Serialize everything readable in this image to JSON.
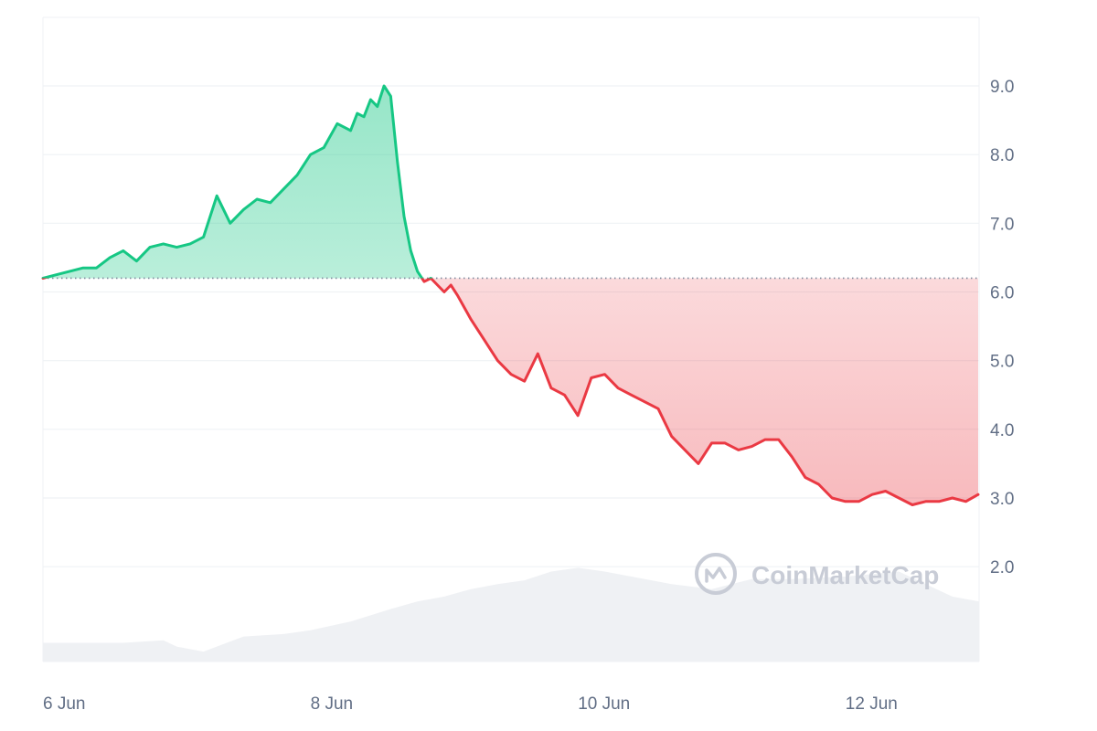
{
  "chart_data": {
    "type": "line",
    "title": "",
    "xlabel": "",
    "ylabel": "",
    "x_ticks": [
      "6 Jun",
      "8 Jun",
      "10 Jun",
      "12 Jun"
    ],
    "y_ticks": [
      "2.0",
      "3.0",
      "4.0",
      "5.0",
      "6.0",
      "7.0",
      "8.0",
      "9.0"
    ],
    "ylim": [
      1.0,
      10.0
    ],
    "x_range_days": [
      0,
      7.05
    ],
    "baseline": 6.2,
    "grid": true,
    "y_axis_position": "right",
    "series": [
      {
        "x": [
          0.0,
          0.1,
          0.2,
          0.3,
          0.4,
          0.5,
          0.6,
          0.7,
          0.8,
          0.9,
          1.0,
          1.1,
          1.2,
          1.3,
          1.4,
          1.5,
          1.6,
          1.7,
          1.8,
          1.9,
          2.0,
          2.1,
          2.2,
          2.3,
          2.35,
          2.4,
          2.45,
          2.5,
          2.55,
          2.6,
          2.65,
          2.7,
          2.75,
          2.8,
          2.85,
          2.9,
          2.95,
          3.0,
          3.05,
          3.1,
          3.2,
          3.3,
          3.4,
          3.5,
          3.6,
          3.7,
          3.8,
          3.9,
          4.0,
          4.1,
          4.2,
          4.3,
          4.4,
          4.5,
          4.6,
          4.7,
          4.8,
          4.9,
          5.0,
          5.1,
          5.2,
          5.3,
          5.4,
          5.5,
          5.6,
          5.7,
          5.8,
          5.9,
          6.0,
          6.1,
          6.2,
          6.3,
          6.4,
          6.5,
          6.6,
          6.7,
          6.8,
          6.9,
          7.0,
          7.05
        ],
        "y": [
          6.2,
          6.25,
          6.3,
          6.35,
          6.35,
          6.5,
          6.6,
          6.45,
          6.65,
          6.7,
          6.65,
          6.7,
          6.8,
          7.4,
          7.0,
          7.2,
          7.35,
          7.3,
          7.5,
          7.7,
          8.0,
          8.1,
          8.45,
          8.35,
          8.6,
          8.55,
          8.8,
          8.7,
          9.0,
          8.85,
          7.9,
          7.1,
          6.6,
          6.3,
          6.15,
          6.2,
          6.1,
          6.0,
          6.1,
          5.95,
          5.6,
          5.3,
          5.0,
          4.8,
          4.7,
          5.1,
          4.6,
          4.5,
          4.2,
          4.75,
          4.8,
          4.6,
          4.5,
          4.4,
          4.3,
          3.9,
          3.7,
          3.5,
          3.8,
          3.8,
          3.7,
          3.75,
          3.85,
          3.85,
          3.6,
          3.3,
          3.2,
          3.0,
          2.95,
          2.95,
          3.05,
          3.1,
          3.0,
          2.9,
          2.95,
          2.95,
          3.0,
          2.95,
          3.05,
          3.05
        ]
      }
    ],
    "volume": {
      "x": [
        0.0,
        0.3,
        0.6,
        0.9,
        1.0,
        1.2,
        1.5,
        1.8,
        2.0,
        2.3,
        2.6,
        2.8,
        3.0,
        3.2,
        3.4,
        3.6,
        3.8,
        4.0,
        4.2,
        4.4,
        4.7,
        5.0,
        5.3,
        5.6,
        6.0,
        6.4,
        6.8,
        7.05
      ],
      "level": [
        0.15,
        0.15,
        0.15,
        0.17,
        0.12,
        0.08,
        0.2,
        0.22,
        0.25,
        0.32,
        0.42,
        0.48,
        0.52,
        0.58,
        0.62,
        0.65,
        0.72,
        0.75,
        0.72,
        0.68,
        0.62,
        0.58,
        0.66,
        0.66,
        0.68,
        0.72,
        0.52,
        0.48
      ]
    },
    "colors": {
      "up": "#16c784",
      "down": "#ea3943",
      "grid": "#eff2f5",
      "axis_text": "#616e85",
      "volume": "#eff1f4"
    }
  },
  "watermark": {
    "text": "CoinMarketCap"
  }
}
